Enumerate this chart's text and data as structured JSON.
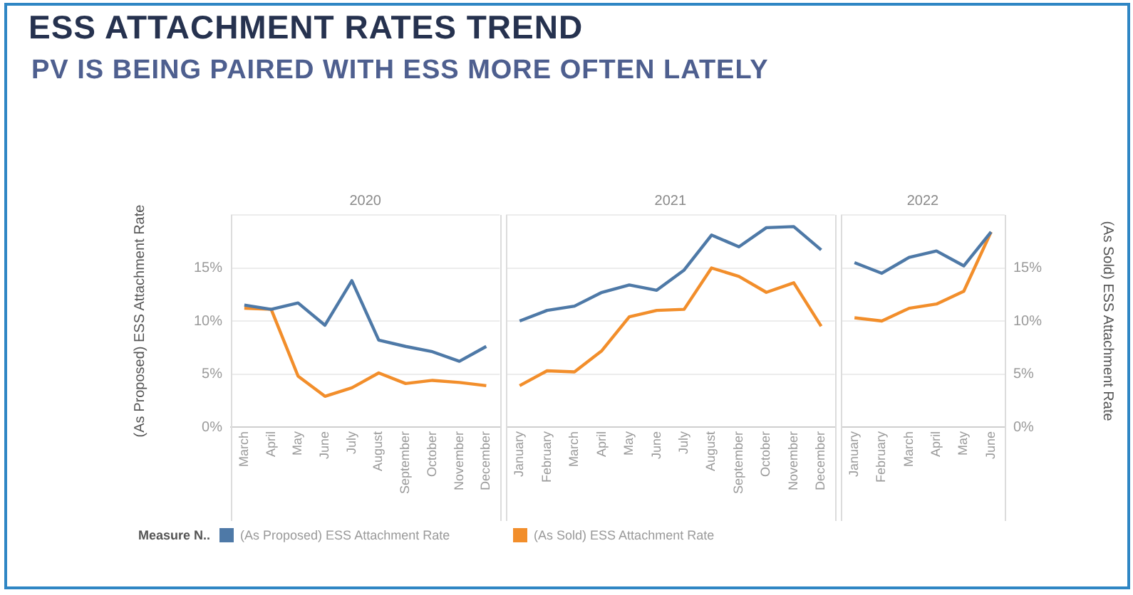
{
  "chart_data": [
    {
      "type": "line",
      "title": "ESS ATTACHMENT RATES TREND",
      "subtitle": "PV IS BEING PAIRED WITH ESS MORE OFTEN LATELY",
      "annotations": [
        "2020"
      ],
      "ylabel": "(As Proposed) ESS Attachment Rate",
      "legend": "bottom",
      "legend_title": "Measure N..",
      "grid": "y",
      "tick_labels": "xy",
      "categories": [
        "March",
        "April",
        "May",
        "June",
        "July",
        "August",
        "September",
        "October",
        "November",
        "December"
      ],
      "ylim": [
        0,
        20
      ],
      "yticks": [
        {
          "value": 0,
          "label": "0%"
        },
        {
          "value": 5,
          "label": "5%"
        },
        {
          "value": 10,
          "label": "10%"
        },
        {
          "value": 15,
          "label": "15%"
        },
        {
          "value": 20,
          "label": null
        }
      ],
      "series": [
        {
          "name": "(As Proposed) ESS Attachment Rate",
          "color": "#4e79a7",
          "values": [
            11.5,
            11.1,
            11.7,
            9.6,
            13.8,
            8.2,
            7.6,
            7.1,
            6.2,
            7.6
          ]
        },
        {
          "name": "(As Sold) ESS Attachment Rate",
          "color": "#f28e2b",
          "values": [
            11.2,
            11.1,
            4.8,
            2.9,
            3.7,
            5.1,
            4.1,
            4.4,
            4.2,
            3.9
          ]
        }
      ]
    },
    {
      "type": "line",
      "annotations": [
        "2021"
      ],
      "grid": "y",
      "tick_labels": "x",
      "categories": [
        "January",
        "February",
        "March",
        "April",
        "May",
        "June",
        "July",
        "August",
        "September",
        "October",
        "November",
        "December"
      ],
      "ylim": [
        0,
        20
      ],
      "yticks": [
        0,
        5,
        10,
        15,
        20
      ],
      "series": [
        {
          "color": "#4e79a7",
          "values": [
            10.0,
            11.0,
            11.4,
            12.7,
            13.4,
            12.9,
            14.8,
            18.1,
            17.0,
            18.8,
            18.9,
            16.7
          ]
        },
        {
          "color": "#f28e2b",
          "values": [
            3.9,
            5.3,
            5.2,
            7.2,
            10.4,
            11.0,
            11.1,
            15.0,
            14.2,
            12.7,
            13.6,
            9.5
          ]
        }
      ]
    },
    {
      "type": "line",
      "annotations": [
        "2022"
      ],
      "grid": "y",
      "tick_labels": "xy2",
      "y2label": "(As Sold) ESS Attachment Rate",
      "categories": [
        "January",
        "February",
        "March",
        "April",
        "May",
        "June"
      ],
      "y2lim": [
        0,
        20
      ],
      "y2ticks": [
        {
          "value": 0,
          "label": "0%"
        },
        {
          "value": 5,
          "label": "5%"
        },
        {
          "value": 10,
          "label": "10%"
        },
        {
          "value": 15,
          "label": "15%"
        },
        {
          "value": 20,
          "label": null
        }
      ],
      "series": [
        {
          "color": "#4e79a7",
          "axis": "y2",
          "values": [
            15.5,
            14.5,
            16.0,
            16.6,
            15.2,
            18.4
          ]
        },
        {
          "color": "#f28e2b",
          "axis": "y2",
          "values": [
            10.3,
            10.0,
            11.2,
            11.6,
            12.8,
            18.4
          ]
        }
      ]
    }
  ]
}
